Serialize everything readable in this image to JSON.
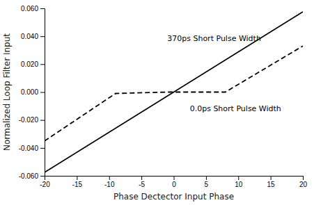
{
  "chart_data": {
    "type": "line",
    "xlabel": "Phase Dectector Input Phase",
    "ylabel": "Normalized Loop Filter Input",
    "xlim": [
      -20,
      20
    ],
    "ylim": [
      -0.06,
      0.06
    ],
    "xticks": [
      -20,
      -15,
      -10,
      -5,
      0,
      5,
      10,
      15,
      20
    ],
    "yticks": [
      {
        "value": -0.06,
        "label": "-0.060"
      },
      {
        "value": -0.04,
        "label": "-0.040"
      },
      {
        "value": -0.02,
        "label": "-0.020"
      },
      {
        "value": 0,
        "label": "0.000"
      },
      {
        "value": 0.02,
        "label": "0.020"
      },
      {
        "value": 0.04,
        "label": "0.040"
      },
      {
        "value": 0.06,
        "label": "0.060"
      }
    ],
    "series": [
      {
        "x": [
          -20,
          20
        ],
        "values": [
          -0.0575,
          0.0575
        ],
        "color": "#000000",
        "line_style": "solid"
      },
      {
        "x": [
          -20,
          -9.0,
          -1.0,
          8.0,
          20
        ],
        "values": [
          -0.035,
          -0.001,
          0.0,
          0.0,
          0.033
        ],
        "color": "#000000",
        "line_style": "dashed"
      }
    ],
    "annotations": [
      {
        "text": "370ps Short Pulse Width",
        "x": -1.0,
        "y": 0.038
      },
      {
        "text": "0.0ps Short Pulse Width",
        "x": 2.5,
        "y": -0.012
      }
    ]
  }
}
